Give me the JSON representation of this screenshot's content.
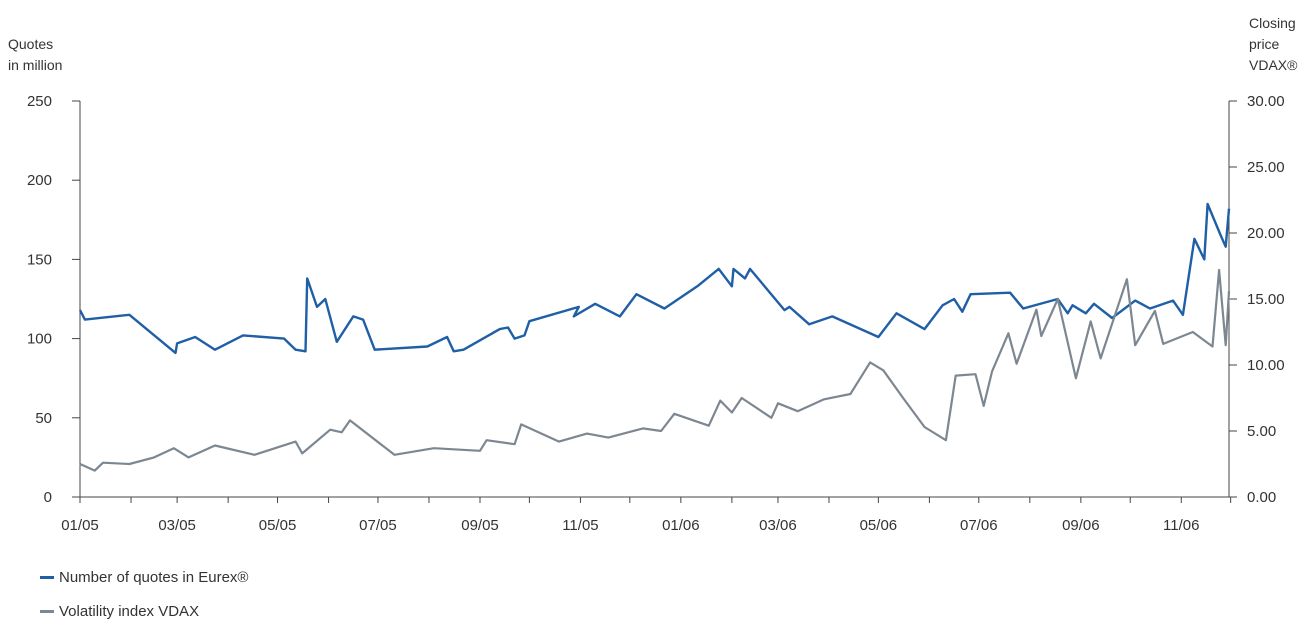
{
  "left_axis_title": "Quotes\nin million",
  "right_axis_title": "Closing\nprice\nVDAX®",
  "legend": [
    {
      "label": "Number of quotes in Eurex®",
      "color": "#1f5fa6"
    },
    {
      "label": "Volatility index VDAX",
      "color": "#7d8791"
    }
  ],
  "chart_data": {
    "type": "line",
    "xlabel": "",
    "x_ticks": [
      "01/05",
      "03/05",
      "05/05",
      "07/05",
      "09/05",
      "11/05",
      "01/06",
      "03/06",
      "05/06",
      "07/06",
      "09/06",
      "11/06"
    ],
    "xlim": [
      "2005-01-01",
      "2006-11-30"
    ],
    "y_left": {
      "ticks": [
        "0",
        "50",
        "100",
        "150",
        "200",
        "250"
      ],
      "lim": [
        0,
        250
      ]
    },
    "y_right": {
      "ticks": [
        "0.00",
        "5.00",
        "10.00",
        "15.00",
        "20.00",
        "25.00",
        "30.00"
      ],
      "lim": [
        0,
        30
      ]
    },
    "series": [
      {
        "name": "Number of quotes in Eurex®",
        "axis": "left",
        "color": "#1f5fa6",
        "points": [
          [
            "2005-01-01",
            118
          ],
          [
            "2005-01-04",
            112
          ],
          [
            "2005-01-31",
            115
          ],
          [
            "2005-02-28",
            91
          ],
          [
            "2005-03-01",
            97
          ],
          [
            "2005-03-12",
            101
          ],
          [
            "2005-03-24",
            93
          ],
          [
            "2005-04-10",
            102
          ],
          [
            "2005-05-05",
            100
          ],
          [
            "2005-05-12",
            93
          ],
          [
            "2005-05-18",
            92
          ],
          [
            "2005-05-19",
            138
          ],
          [
            "2005-05-25",
            120
          ],
          [
            "2005-05-30",
            125
          ],
          [
            "2005-06-06",
            98
          ],
          [
            "2005-06-16",
            114
          ],
          [
            "2005-06-22",
            112
          ],
          [
            "2005-06-29",
            93
          ],
          [
            "2005-07-31",
            95
          ],
          [
            "2005-08-12",
            101
          ],
          [
            "2005-08-16",
            92
          ],
          [
            "2005-08-22",
            93
          ],
          [
            "2005-09-13",
            106
          ],
          [
            "2005-09-18",
            107
          ],
          [
            "2005-09-22",
            100
          ],
          [
            "2005-09-28",
            102
          ],
          [
            "2005-10-01",
            111
          ],
          [
            "2005-10-31",
            120
          ],
          [
            "2005-10-28",
            114
          ],
          [
            "2005-11-10",
            122
          ],
          [
            "2005-11-25",
            114
          ],
          [
            "2005-12-05",
            128
          ],
          [
            "2005-12-22",
            119
          ],
          [
            "2006-01-11",
            133
          ],
          [
            "2006-01-24",
            144
          ],
          [
            "2006-02-01",
            133
          ],
          [
            "2006-02-02",
            144
          ],
          [
            "2006-02-09",
            138
          ],
          [
            "2006-02-12",
            144
          ],
          [
            "2006-03-05",
            118
          ],
          [
            "2006-03-08",
            120
          ],
          [
            "2006-03-20",
            109
          ],
          [
            "2006-04-03",
            114
          ],
          [
            "2006-05-01",
            101
          ],
          [
            "2006-05-12",
            116
          ],
          [
            "2006-05-29",
            106
          ],
          [
            "2006-06-09",
            121
          ],
          [
            "2006-06-16",
            125
          ],
          [
            "2006-06-21",
            117
          ],
          [
            "2006-06-26",
            128
          ],
          [
            "2006-07-20",
            129
          ],
          [
            "2006-07-28",
            119
          ],
          [
            "2006-08-18",
            125
          ],
          [
            "2006-08-24",
            116
          ],
          [
            "2006-08-27",
            121
          ],
          [
            "2006-09-04",
            116
          ],
          [
            "2006-09-09",
            122
          ],
          [
            "2006-09-20",
            113
          ],
          [
            "2006-10-04",
            124
          ],
          [
            "2006-10-13",
            119
          ],
          [
            "2006-10-27",
            124
          ],
          [
            "2006-11-02",
            115
          ],
          [
            "2006-11-09",
            163
          ],
          [
            "2006-11-15",
            150
          ],
          [
            "2006-11-17",
            185
          ],
          [
            "2006-11-25",
            165
          ],
          [
            "2006-11-28",
            158
          ],
          [
            "2006-11-30",
            182
          ]
        ]
      },
      {
        "name": "Volatility index VDAX",
        "axis": "right",
        "color": "#7d8791",
        "points": [
          [
            "2005-01-01",
            2.5
          ],
          [
            "2005-01-10",
            2.0
          ],
          [
            "2005-01-15",
            2.6
          ],
          [
            "2005-01-31",
            2.5
          ],
          [
            "2005-02-15",
            3.0
          ],
          [
            "2005-02-27",
            3.7
          ],
          [
            "2005-03-08",
            3.0
          ],
          [
            "2005-03-24",
            3.9
          ],
          [
            "2005-04-17",
            3.2
          ],
          [
            "2005-05-12",
            4.2
          ],
          [
            "2005-05-16",
            3.3
          ],
          [
            "2005-06-02",
            5.1
          ],
          [
            "2005-06-09",
            4.9
          ],
          [
            "2005-06-14",
            5.8
          ],
          [
            "2005-07-11",
            3.2
          ],
          [
            "2005-08-04",
            3.7
          ],
          [
            "2005-09-01",
            3.5
          ],
          [
            "2005-09-05",
            4.3
          ],
          [
            "2005-09-22",
            4.0
          ],
          [
            "2005-09-26",
            5.5
          ],
          [
            "2005-10-19",
            4.2
          ],
          [
            "2005-11-05",
            4.8
          ],
          [
            "2005-11-18",
            4.5
          ],
          [
            "2005-12-09",
            5.2
          ],
          [
            "2005-12-20",
            5.0
          ],
          [
            "2005-12-28",
            6.3
          ],
          [
            "2006-01-18",
            5.4
          ],
          [
            "2006-01-25",
            7.3
          ],
          [
            "2006-02-01",
            6.4
          ],
          [
            "2006-02-07",
            7.5
          ],
          [
            "2006-02-25",
            6.0
          ],
          [
            "2006-03-01",
            7.1
          ],
          [
            "2006-03-13",
            6.5
          ],
          [
            "2006-03-29",
            7.4
          ],
          [
            "2006-04-14",
            7.8
          ],
          [
            "2006-04-26",
            10.2
          ],
          [
            "2006-05-04",
            9.6
          ],
          [
            "2006-05-16",
            7.5
          ],
          [
            "2006-05-29",
            5.3
          ],
          [
            "2006-06-11",
            4.3
          ],
          [
            "2006-06-17",
            9.2
          ],
          [
            "2006-06-29",
            9.3
          ],
          [
            "2006-07-04",
            6.9
          ],
          [
            "2006-07-09",
            9.5
          ],
          [
            "2006-07-19",
            12.4
          ],
          [
            "2006-07-24",
            10.1
          ],
          [
            "2006-08-05",
            14.2
          ],
          [
            "2006-08-08",
            12.2
          ],
          [
            "2006-08-18",
            15.0
          ],
          [
            "2006-08-29",
            9.0
          ],
          [
            "2006-09-07",
            13.3
          ],
          [
            "2006-09-13",
            10.5
          ],
          [
            "2006-09-29",
            16.5
          ],
          [
            "2006-10-04",
            11.5
          ],
          [
            "2006-10-16",
            14.1
          ],
          [
            "2006-10-21",
            11.6
          ],
          [
            "2006-11-08",
            12.5
          ],
          [
            "2006-11-20",
            11.4
          ],
          [
            "2006-11-24",
            17.2
          ],
          [
            "2006-11-28",
            11.5
          ],
          [
            "2006-11-30",
            15.6
          ]
        ]
      }
    ]
  }
}
